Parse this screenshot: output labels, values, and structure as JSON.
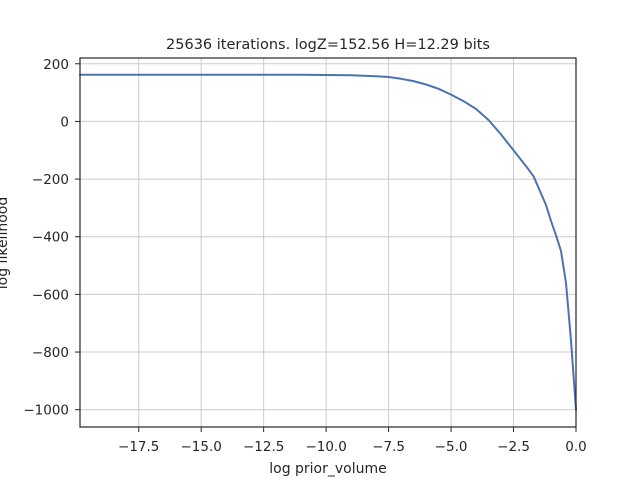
{
  "chart_data": {
    "type": "line",
    "title": "25636 iterations. logZ=152.56 H=12.29 bits",
    "xlabel": "log prior_volume",
    "ylabel": "log likelihood",
    "xlim": [
      -19.85,
      0.0
    ],
    "ylim": [
      -1060,
      220
    ],
    "grid": true,
    "x_ticks": [
      -17.5,
      -15.0,
      -12.5,
      -10.0,
      -7.5,
      -5.0,
      -2.5,
      0.0
    ],
    "x_tick_labels": [
      "−17.5",
      "−15.0",
      "−12.5",
      "−10.0",
      "−7.5",
      "−5.0",
      "−2.5",
      "0.0"
    ],
    "y_ticks": [
      200,
      0,
      -200,
      -400,
      -600,
      -800,
      -1000
    ],
    "y_tick_labels": [
      "200",
      "0",
      "−200",
      "−400",
      "−600",
      "−800",
      "−1000"
    ],
    "series": [
      {
        "color": "#4c72b0",
        "x": [
          -19.85,
          -17.5,
          -15.0,
          -12.5,
          -11.0,
          -10.0,
          -9.0,
          -8.0,
          -7.5,
          -7.0,
          -6.5,
          -6.0,
          -5.5,
          -5.0,
          -4.5,
          -4.0,
          -3.5,
          -3.0,
          -2.5,
          -2.0,
          -1.7,
          -1.5,
          -1.2,
          -1.0,
          -0.8,
          -0.6,
          -0.4,
          -0.2,
          -0.1,
          0.0
        ],
        "y": [
          162,
          162,
          162,
          162,
          162,
          161,
          160,
          157,
          154,
          148,
          140,
          128,
          113,
          93,
          70,
          43,
          5,
          -45,
          -100,
          -155,
          -190,
          -230,
          -290,
          -345,
          -395,
          -450,
          -560,
          -760,
          -880,
          -1000
        ]
      }
    ]
  }
}
